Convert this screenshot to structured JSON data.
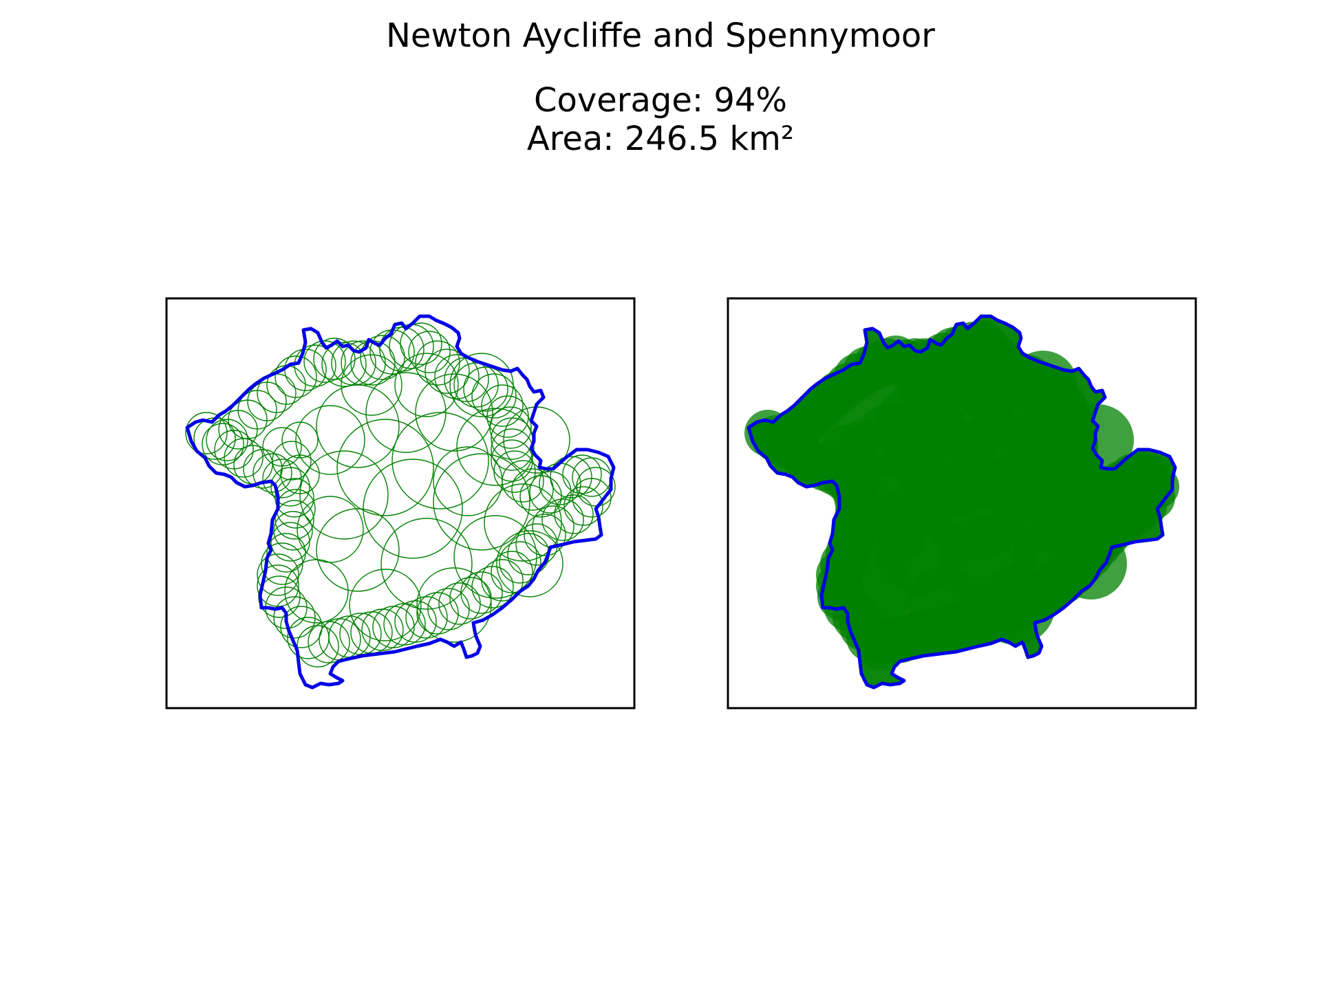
{
  "figure": {
    "title": "Newton Aycliffe and Spennymoor",
    "coverage_label": "Coverage: 94%",
    "area_label": "Area: 246.5 km²"
  },
  "colors": {
    "boundary": "#0000e6",
    "coverage": "#008000"
  },
  "panels": [
    {
      "name": "coverage-outline-panel",
      "style": "outline"
    },
    {
      "name": "coverage-filled-panel",
      "style": "filled"
    }
  ]
}
